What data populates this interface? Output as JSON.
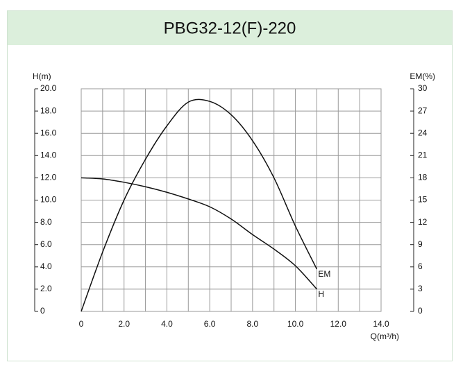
{
  "chart_data": {
    "type": "line",
    "title": "PBG32-12(F)-220",
    "y_label": "H(m)",
    "y2_label": "EM(%)",
    "x_label": "Q(m³/h)",
    "x": [
      0,
      1,
      2,
      3,
      4,
      5,
      6,
      7,
      8,
      9,
      10,
      11
    ],
    "series": [
      {
        "name": "H",
        "color": "#111111",
        "values": [
          12.0,
          11.9,
          11.6,
          11.2,
          10.7,
          10.1,
          9.4,
          8.3,
          6.9,
          5.6,
          4.1,
          2.0
        ]
      },
      {
        "name": "EM",
        "color": "#111111",
        "axis": "y2",
        "values": [
          0,
          8.0,
          15.0,
          20.5,
          25.0,
          28.2,
          28.3,
          26.5,
          23.0,
          18.0,
          11.5,
          5.7
        ]
      }
    ],
    "xlim": [
      0,
      14
    ],
    "xticks": [
      0,
      {
        "value": 2,
        "label": "2.0"
      },
      {
        "value": 4,
        "label": "4.0"
      },
      {
        "value": 6,
        "label": "6.0"
      },
      {
        "value": 8,
        "label": "8.0"
      },
      {
        "value": 10,
        "label": "10.0"
      },
      {
        "value": 12,
        "label": "12.0"
      },
      {
        "value": 14,
        "label": "14.0"
      }
    ],
    "xminor": [
      1,
      3,
      5,
      7,
      9,
      11,
      13
    ],
    "ylim": [
      0,
      20
    ],
    "yticks": [
      0,
      {
        "value": 2,
        "label": "2.0"
      },
      {
        "value": 4,
        "label": "4.0"
      },
      {
        "value": 6,
        "label": "6.0"
      },
      {
        "value": 8,
        "label": "8.0"
      },
      {
        "value": 10,
        "label": "10.0"
      },
      {
        "value": 12,
        "label": "12.0"
      },
      {
        "value": 14,
        "label": "14.0"
      },
      {
        "value": 16,
        "label": "16.0"
      },
      {
        "value": 18,
        "label": "18.0"
      },
      {
        "value": 20,
        "label": "20.0"
      }
    ],
    "y2lim": [
      0,
      30
    ],
    "y2ticks": [
      0,
      3,
      6,
      9,
      12,
      15,
      18,
      21,
      24,
      27,
      30
    ],
    "grid": true
  }
}
